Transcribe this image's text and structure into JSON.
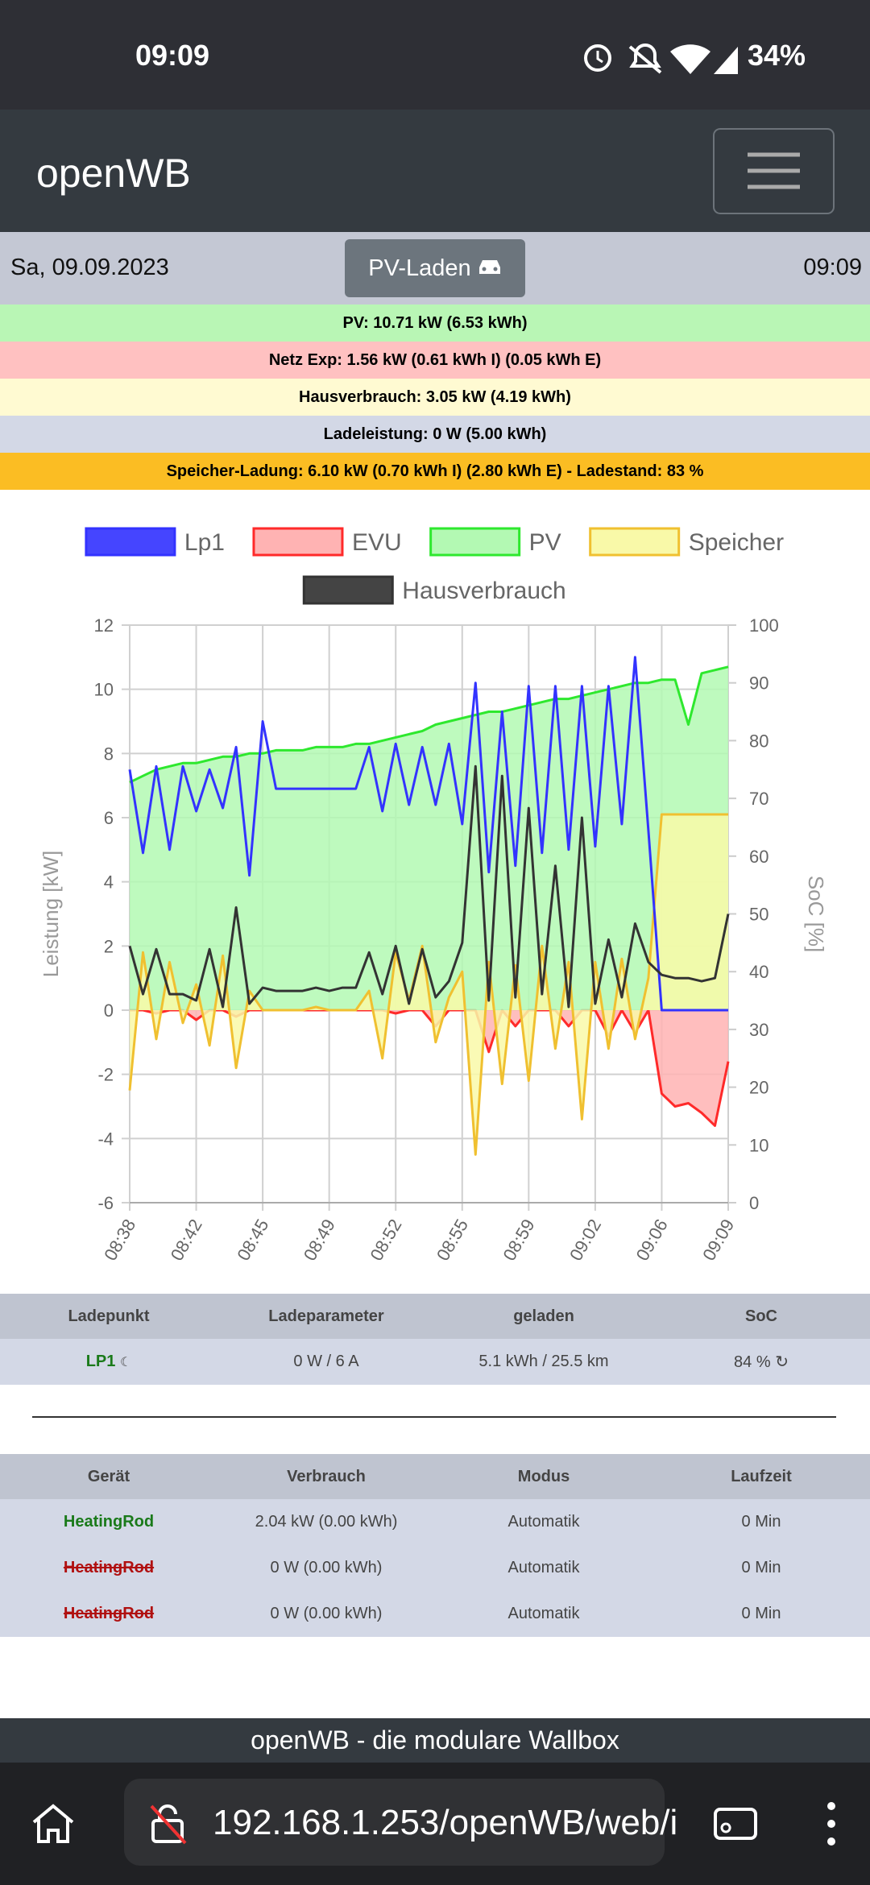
{
  "status_bar": {
    "time": "09:09",
    "battery": "34%"
  },
  "header": {
    "title": "openWB"
  },
  "info_bar": {
    "date": "Sa, 09.09.2023",
    "mode_button": "PV-Laden",
    "time": "09:09"
  },
  "summary": [
    "PV: 10.71 kW (6.53 kWh)",
    "Netz Exp: 1.56 kW (0.61 kWh I) (0.05 kWh E)",
    "Hausverbrauch: 3.05 kW (4.19 kWh)",
    "Ladeleistung: 0 W (5.00 kWh)",
    "Speicher-Ladung: 6.10 kW (0.70 kWh I) (2.80 kWh E) - Ladestand: 83 %"
  ],
  "chart_data": {
    "type": "line",
    "y_label": "Leistung [kW]",
    "y2_label": "SoC [%]",
    "categories": [
      "08:38",
      null,
      null,
      null,
      null,
      "08:42",
      null,
      null,
      null,
      null,
      "08:45",
      null,
      null,
      null,
      null,
      "08:49",
      null,
      null,
      null,
      null,
      "08:52",
      null,
      null,
      null,
      null,
      "08:55",
      null,
      null,
      null,
      null,
      "08:59",
      null,
      null,
      null,
      null,
      "09:02",
      null,
      null,
      null,
      null,
      "09:06",
      null,
      null,
      null,
      null,
      "09:09"
    ],
    "ylim": [
      -6,
      12
    ],
    "yticks": [
      -6,
      -4,
      -2,
      0,
      2,
      4,
      6,
      8,
      10,
      12
    ],
    "y2lim": [
      0,
      100
    ],
    "y2ticks": [
      0,
      10,
      20,
      30,
      40,
      50,
      60,
      70,
      80,
      90,
      100
    ],
    "grid": true,
    "series": [
      {
        "name": "Lp1",
        "color": "#3333ff",
        "fill_color": "#4545ff",
        "area": false,
        "values": [
          7.5,
          4.9,
          7.6,
          5.0,
          7.6,
          6.2,
          7.5,
          6.3,
          8.2,
          4.2,
          9.0,
          6.9,
          6.9,
          6.9,
          6.9,
          6.9,
          6.9,
          6.9,
          8.2,
          6.2,
          8.3,
          6.4,
          8.2,
          6.4,
          8.3,
          5.8,
          10.2,
          4.3,
          9.3,
          4.5,
          10.1,
          4.9,
          10.1,
          5.0,
          10.1,
          5.1,
          10.1,
          5.8,
          11.0,
          5.6,
          0,
          0,
          0,
          0,
          0,
          0
        ]
      },
      {
        "name": "EVU",
        "color": "#ff2a2a",
        "fill_color": "#ffb3b3",
        "area": true,
        "values": [
          0,
          0,
          -0.1,
          0,
          0,
          -0.3,
          0,
          0,
          -0.2,
          0,
          0,
          0,
          0,
          0,
          0,
          0,
          0,
          0,
          0,
          0,
          -0.1,
          0,
          0,
          -0.5,
          0,
          0,
          0,
          -1.3,
          0,
          -0.5,
          0,
          0,
          0,
          -0.5,
          0,
          0,
          -0.8,
          0,
          -0.7,
          0,
          -2.6,
          -3.0,
          -2.9,
          -3.2,
          -3.6,
          -1.6
        ]
      },
      {
        "name": "PV",
        "color": "#2ee82e",
        "fill_color": "#b3f9b3",
        "area": true,
        "values": [
          7.1,
          7.3,
          7.5,
          7.6,
          7.7,
          7.7,
          7.8,
          7.9,
          7.9,
          8.0,
          8.0,
          8.1,
          8.1,
          8.1,
          8.2,
          8.2,
          8.2,
          8.3,
          8.3,
          8.4,
          8.5,
          8.6,
          8.7,
          8.9,
          9.0,
          9.1,
          9.2,
          9.3,
          9.3,
          9.4,
          9.5,
          9.6,
          9.7,
          9.7,
          9.8,
          9.9,
          10.0,
          10.1,
          10.2,
          10.2,
          10.3,
          10.3,
          8.9,
          10.5,
          10.6,
          10.7
        ]
      },
      {
        "name": "Speicher",
        "color": "#f0c030",
        "fill_color": "#f9f9a8",
        "area": true,
        "values": [
          -2.5,
          1.8,
          -0.9,
          1.5,
          -0.4,
          0.8,
          -1.1,
          1.7,
          -1.8,
          0.6,
          0,
          0,
          0,
          0,
          0.1,
          0,
          0,
          0,
          0.6,
          -1.5,
          1.8,
          0.3,
          2.0,
          -1.0,
          0.4,
          1.2,
          -4.5,
          1.5,
          -2.3,
          1.4,
          -2.2,
          2.0,
          -1.2,
          1.5,
          -3.4,
          1.5,
          -1.2,
          1.6,
          -0.9,
          1.0,
          6.1,
          6.1,
          6.1,
          6.1,
          6.1,
          6.1
        ]
      },
      {
        "name": "Hausverbrauch",
        "color": "#333333",
        "fill_color": "#444444",
        "area": false,
        "values": [
          2.0,
          0.5,
          1.9,
          0.5,
          0.5,
          0.3,
          1.9,
          0.1,
          3.2,
          0.2,
          0.7,
          0.6,
          0.6,
          0.6,
          0.7,
          0.6,
          0.7,
          0.7,
          1.8,
          0.5,
          2.0,
          0.2,
          1.9,
          0.4,
          0.9,
          2.1,
          7.6,
          0.3,
          7.3,
          0.4,
          6.3,
          0.5,
          4.5,
          0.1,
          6.0,
          0.2,
          2.2,
          0.4,
          2.7,
          1.5,
          1.1,
          1.0,
          1.0,
          0.9,
          1.0,
          3.0
        ]
      }
    ]
  },
  "charge_table": {
    "headers": [
      "Ladepunkt",
      "Ladeparameter",
      "geladen",
      "SoC"
    ],
    "rows": [
      [
        "LP1",
        "0 W / 6 A",
        "5.1 kWh / 25.5 km",
        "84 %"
      ]
    ]
  },
  "device_table": {
    "headers": [
      "Gerät",
      "Verbrauch",
      "Modus",
      "Laufzeit"
    ],
    "rows": [
      [
        "HeatingRod",
        "2.04 kW (0.00 kWh)",
        "Automatik",
        "0 Min"
      ],
      [
        "HeatingRod",
        "0 W (0.00 kWh)",
        "Automatik",
        "0 Min"
      ],
      [
        "HeatingRod",
        "0 W (0.00 kWh)",
        "Automatik",
        "0 Min"
      ]
    ]
  },
  "footer": {
    "text": "openWB - die modulare Wallbox"
  },
  "browser_bar": {
    "url": "192.168.1.253/openWB/web/i"
  }
}
